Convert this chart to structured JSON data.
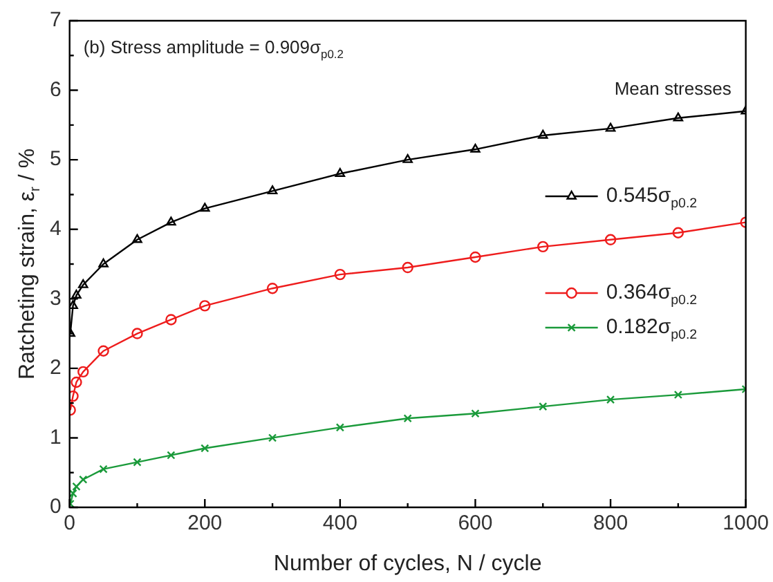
{
  "chart_data": {
    "type": "line",
    "xlabel": "Number of cycles, N / cycle",
    "ylabel": "Ratcheting strain, ε$_{r}$ / %",
    "legend_title": "Mean stresses",
    "annotations": [
      "(b) Stress amplitude = 0.909σ$_{p0.2}$"
    ],
    "x": [
      1,
      5,
      10,
      20,
      50,
      100,
      150,
      200,
      300,
      400,
      500,
      600,
      700,
      800,
      900,
      1000
    ],
    "series": [
      {
        "name": "0.545σ$_{p0.2}$",
        "color": "#000000",
        "marker": "triangle",
        "values": [
          2.5,
          2.9,
          3.05,
          3.2,
          3.5,
          3.85,
          4.1,
          4.3,
          4.55,
          4.8,
          5.0,
          5.15,
          5.35,
          5.45,
          5.6,
          5.7
        ]
      },
      {
        "name": "0.364σ$_{p0.2}$",
        "color": "#ee1c1c",
        "marker": "circle",
        "values": [
          1.4,
          1.6,
          1.8,
          1.95,
          2.25,
          2.5,
          2.7,
          2.9,
          3.15,
          3.35,
          3.45,
          3.6,
          3.75,
          3.85,
          3.95,
          4.1
        ]
      },
      {
        "name": "0.182σ$_{p0.2}$",
        "color": "#1a9a3a",
        "marker": "cross",
        "values": [
          0.05,
          0.2,
          0.3,
          0.4,
          0.55,
          0.65,
          0.75,
          0.85,
          1.0,
          1.15,
          1.28,
          1.35,
          1.45,
          1.55,
          1.62,
          1.7
        ]
      }
    ],
    "xlim": [
      0,
      1000
    ],
    "xticks": [
      0,
      200,
      400,
      600,
      800,
      1000
    ],
    "ylim": [
      0,
      7
    ],
    "yticks": [
      0,
      1,
      2,
      3,
      4,
      5,
      6,
      7
    ],
    "grid": false,
    "legend": "right",
    "line_style": "solid"
  }
}
